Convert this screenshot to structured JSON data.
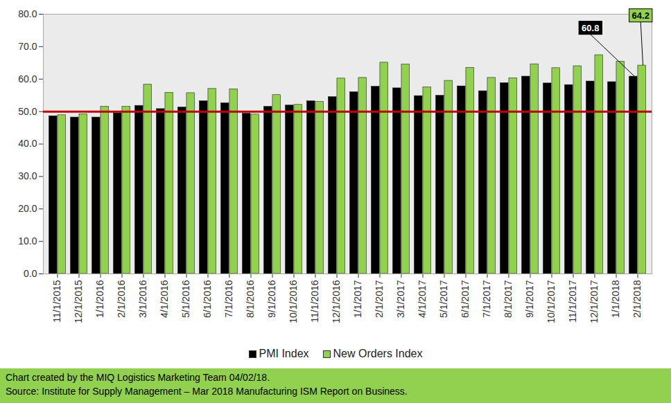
{
  "chart_data": {
    "type": "bar",
    "categories": [
      "11/1/2015",
      "12/1/2015",
      "1/1/2016",
      "2/1/2016",
      "3/1/2016",
      "4/1/2016",
      "5/1/2016",
      "6/1/2016",
      "7/1/2016",
      "8/1/2016",
      "9/1/2016",
      "10/1/2016",
      "11/1/2016",
      "12/1/2016",
      "1/1/2017",
      "2/1/2017",
      "3/1/2017",
      "4/1/2017",
      "5/1/2017",
      "6/1/2017",
      "7/1/2017",
      "8/1/2017",
      "9/1/2017",
      "10/1/2017",
      "11/1/2017",
      "12/1/2017",
      "1/1/2018",
      "2/1/2018"
    ],
    "series": [
      {
        "name": "PMI Index",
        "color": "#000000",
        "values": [
          48.6,
          48.2,
          48.2,
          49.5,
          51.8,
          50.8,
          51.3,
          53.2,
          52.6,
          49.4,
          51.5,
          51.9,
          53.2,
          54.5,
          56.0,
          57.7,
          57.2,
          54.8,
          54.9,
          57.8,
          56.3,
          58.8,
          60.8,
          58.7,
          58.2,
          59.3,
          59.1,
          60.8
        ]
      },
      {
        "name": "New Orders Index",
        "color": "#92d050",
        "values": [
          48.9,
          49.2,
          51.5,
          51.5,
          58.3,
          55.8,
          55.7,
          57.0,
          56.9,
          49.1,
          55.1,
          52.1,
          53.0,
          60.2,
          60.4,
          65.1,
          64.5,
          57.5,
          59.5,
          63.5,
          60.4,
          60.3,
          64.6,
          63.4,
          64.0,
          67.4,
          65.4,
          64.2
        ]
      }
    ],
    "ylim": [
      0,
      80
    ],
    "yticks": [
      {
        "value": 0,
        "label": "0.0"
      },
      {
        "value": 10,
        "label": "10.0"
      },
      {
        "value": 20,
        "label": "20.0"
      },
      {
        "value": 30,
        "label": "30.0"
      },
      {
        "value": 40,
        "label": "40.0"
      },
      {
        "value": 50,
        "label": "50.0"
      },
      {
        "value": 60,
        "label": "60.0"
      },
      {
        "value": 70,
        "label": "70.0"
      },
      {
        "value": 80,
        "label": "80.0"
      }
    ],
    "grid": false,
    "legend": "bottom",
    "reference_line": {
      "value": 50,
      "color": "#c00000"
    },
    "annotations": [
      {
        "series": "PMI Index",
        "category": "2/1/2018",
        "label": "60.8"
      },
      {
        "series": "New Orders Index",
        "category": "2/1/2018",
        "label": "64.2"
      }
    ],
    "caption": [
      "Chart created by the MIQ Logistics Marketing Team 04/02/18.",
      "Source: Institute for Supply Management – Mar 2018 Manufacturing ISM Report on Business."
    ]
  }
}
